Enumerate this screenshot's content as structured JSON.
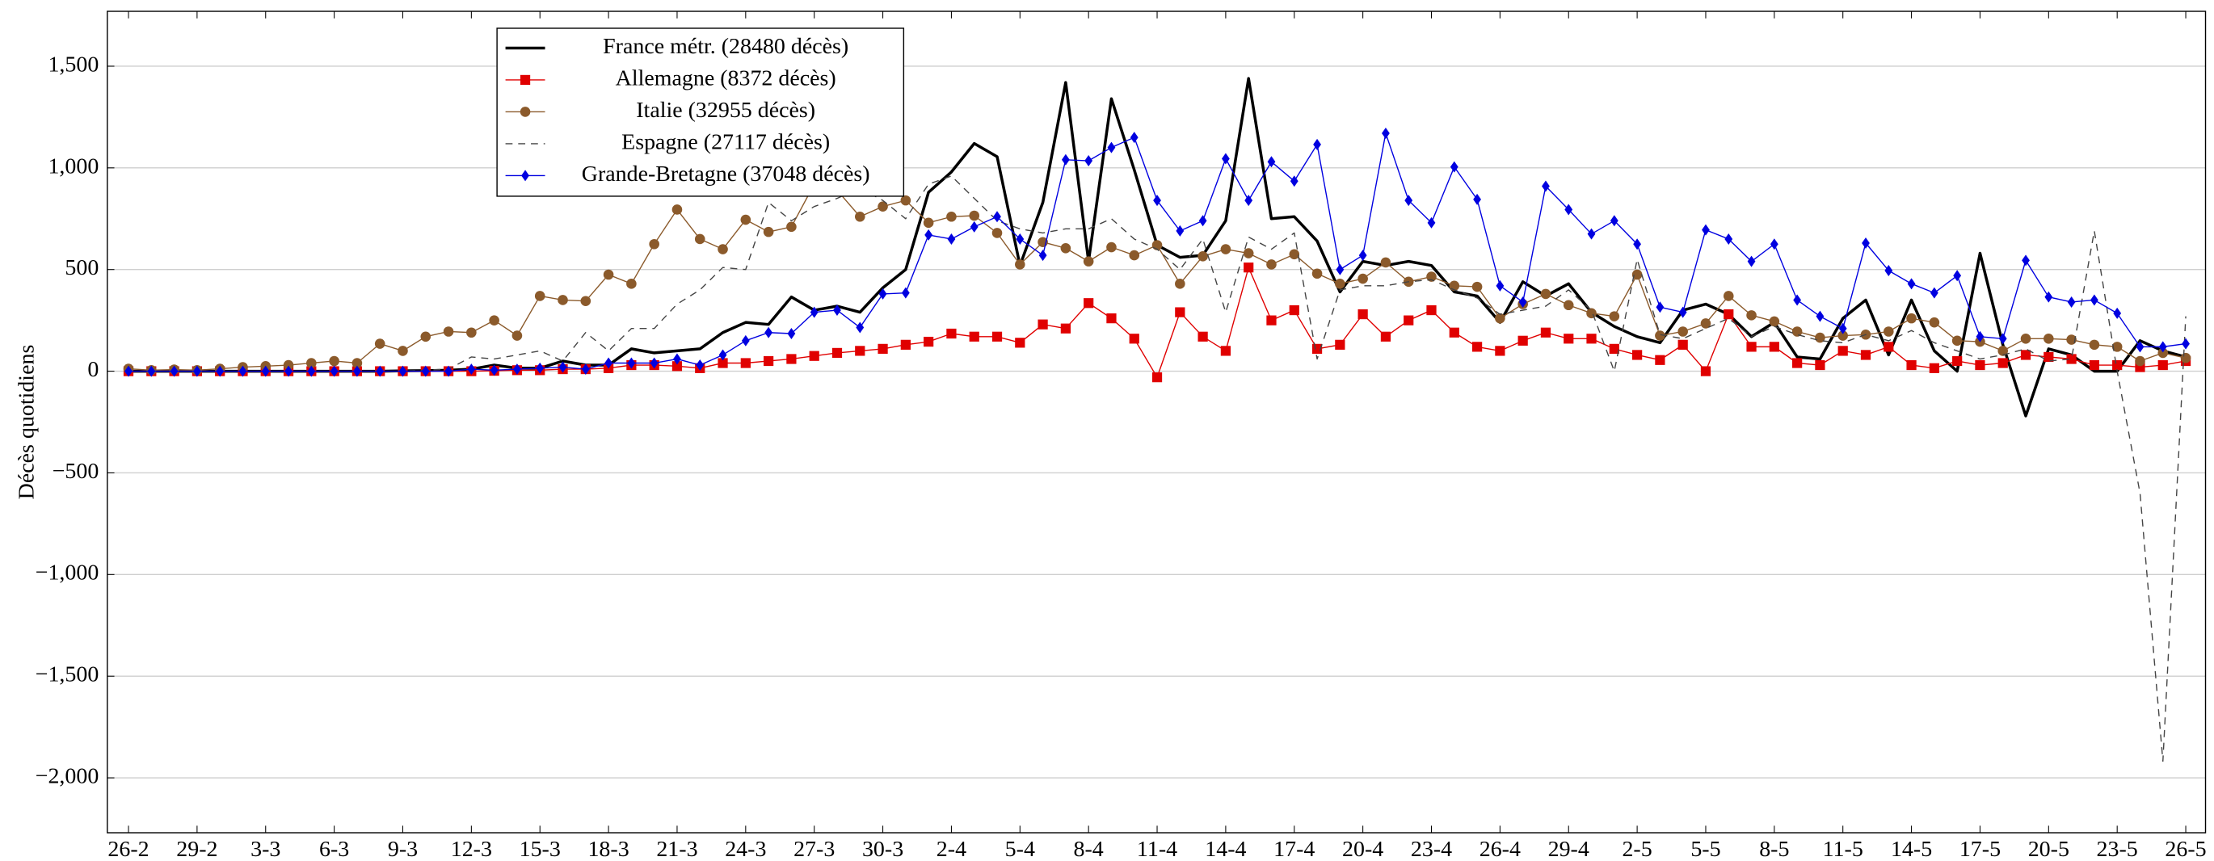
{
  "chart_data": {
    "type": "line",
    "y_label": "Décès quotidiens",
    "categories": [
      "26-2",
      null,
      null,
      "29-2",
      null,
      null,
      "3-3",
      null,
      null,
      "6-3",
      null,
      null,
      "9-3",
      null,
      null,
      "12-3",
      null,
      null,
      "15-3",
      null,
      null,
      "18-3",
      null,
      null,
      "21-3",
      null,
      null,
      "24-3",
      null,
      null,
      "27-3",
      null,
      null,
      "30-3",
      null,
      null,
      "2-4",
      null,
      null,
      "5-4",
      null,
      null,
      "8-4",
      null,
      null,
      "11-4",
      null,
      null,
      "14-4",
      null,
      null,
      "17-4",
      null,
      null,
      "20-4",
      null,
      null,
      "23-4",
      null,
      null,
      "26-4",
      null,
      null,
      "29-4",
      null,
      null,
      "2-5",
      null,
      null,
      "5-5",
      null,
      null,
      "8-5",
      null,
      null,
      "11-5",
      null,
      null,
      "14-5",
      null,
      null,
      "17-5",
      null,
      null,
      "20-5",
      null,
      null,
      "23-5",
      null,
      null,
      "26-5"
    ],
    "series": [
      {
        "name": "France métr. (28480 décès)",
        "color": "#000000",
        "width": 2,
        "linestyle": "solid",
        "marker": "none",
        "values": [
          0,
          0,
          0,
          0,
          0,
          0,
          0,
          0,
          0,
          0,
          0,
          0,
          2,
          3,
          5,
          10,
          30,
          15,
          15,
          50,
          30,
          30,
          110,
          90,
          100,
          110,
          190,
          240,
          230,
          365,
          300,
          320,
          290,
          410,
          500,
          880,
          980,
          1120,
          1055,
          520,
          830,
          1420,
          540,
          1340,
          990,
          620,
          560,
          570,
          740,
          1440,
          750,
          760,
          640,
          390,
          540,
          520,
          540,
          520,
          390,
          370,
          240,
          440,
          370,
          430,
          290,
          220,
          170,
          140,
          300,
          330,
          280,
          170,
          240,
          70,
          60,
          260,
          350,
          80,
          350,
          100,
          0,
          580,
          130,
          -220,
          110,
          80,
          0,
          0,
          150,
          100,
          70
        ]
      },
      {
        "name": "Allemagne (8372 décès)",
        "color": "#e00000",
        "width": 0.8,
        "linestyle": "solid",
        "marker": "square",
        "values": [
          0,
          0,
          0,
          0,
          0,
          0,
          0,
          0,
          0,
          0,
          0,
          0,
          0,
          0,
          0,
          0,
          2,
          5,
          5,
          10,
          10,
          15,
          30,
          30,
          25,
          15,
          40,
          40,
          50,
          60,
          75,
          90,
          100,
          110,
          130,
          145,
          185,
          170,
          170,
          140,
          230,
          210,
          335,
          260,
          160,
          -30,
          290,
          170,
          100,
          510,
          250,
          300,
          110,
          130,
          280,
          170,
          250,
          300,
          190,
          120,
          100,
          150,
          190,
          160,
          160,
          110,
          80,
          55,
          130,
          0,
          280,
          120,
          120,
          40,
          30,
          100,
          80,
          120,
          30,
          15,
          50,
          30,
          40,
          80,
          70,
          60,
          30,
          30,
          20,
          30,
          50
        ]
      },
      {
        "name": "Italie (32955 décès)",
        "color": "#8b5a2b",
        "width": 0.8,
        "linestyle": "solid",
        "marker": "circle",
        "values": [
          12,
          5,
          8,
          5,
          12,
          20,
          25,
          30,
          40,
          50,
          40,
          135,
          100,
          170,
          195,
          190,
          250,
          175,
          370,
          350,
          345,
          475,
          430,
          625,
          795,
          650,
          600,
          745,
          685,
          710,
          920,
          890,
          760,
          810,
          840,
          730,
          760,
          765,
          680,
          525,
          635,
          605,
          540,
          610,
          570,
          620,
          430,
          565,
          600,
          580,
          525,
          575,
          480,
          430,
          455,
          535,
          440,
          465,
          420,
          415,
          260,
          330,
          380,
          325,
          285,
          270,
          475,
          175,
          195,
          235,
          370,
          275,
          245,
          195,
          165,
          175,
          180,
          195,
          260,
          240,
          150,
          145,
          100,
          160,
          160,
          155,
          130,
          120,
          50,
          90,
          65
        ]
      },
      {
        "name": "Espagne (27117 décès)",
        "color": "#444444",
        "width": 0.8,
        "linestyle": "dashed",
        "marker": "none",
        "values": [
          0,
          0,
          0,
          0,
          0,
          0,
          0,
          0,
          0,
          0,
          0,
          0,
          0,
          5,
          10,
          70,
          60,
          80,
          100,
          50,
          190,
          100,
          210,
          210,
          330,
          400,
          510,
          500,
          830,
          740,
          810,
          850,
          900,
          840,
          750,
          920,
          960,
          850,
          740,
          700,
          680,
          700,
          700,
          750,
          650,
          600,
          500,
          650,
          290,
          660,
          600,
          680,
          60,
          400,
          420,
          420,
          440,
          450,
          400,
          360,
          280,
          300,
          320,
          400,
          300,
          0,
          550,
          180,
          160,
          210,
          260,
          170,
          220,
          180,
          150,
          140,
          180,
          150,
          200,
          140,
          100,
          60,
          80,
          110,
          50,
          60,
          690,
          0,
          -600,
          -1918,
          270
        ]
      },
      {
        "name": "Grande-Bretagne (37048 décès)",
        "color": "#0000e0",
        "width": 0.8,
        "linestyle": "solid",
        "marker": "diamond",
        "values": [
          0,
          0,
          0,
          0,
          0,
          0,
          0,
          0,
          0,
          0,
          0,
          0,
          0,
          0,
          0,
          10,
          5,
          10,
          15,
          20,
          10,
          40,
          40,
          40,
          60,
          30,
          80,
          150,
          190,
          185,
          290,
          300,
          215,
          380,
          385,
          670,
          650,
          710,
          760,
          650,
          570,
          1040,
          1035,
          1100,
          1150,
          840,
          690,
          740,
          1045,
          840,
          1030,
          935,
          1115,
          500,
          570,
          1170,
          840,
          730,
          1005,
          845,
          420,
          340,
          910,
          795,
          675,
          740,
          625,
          315,
          290,
          695,
          650,
          540,
          625,
          350,
          270,
          210,
          630,
          495,
          430,
          385,
          470,
          170,
          160,
          545,
          365,
          340,
          350,
          285,
          120,
          120,
          135
        ]
      }
    ],
    "ylim": [
      -2270,
      1770
    ],
    "yticks": [
      {
        "value": -2000,
        "label": "−2,000"
      },
      {
        "value": -1500,
        "label": "−1,500"
      },
      {
        "value": -1000,
        "label": "−1,000"
      },
      {
        "value": -500,
        "label": "−500"
      },
      0,
      500,
      {
        "value": 1000,
        "label": "1,000"
      },
      {
        "value": 1500,
        "label": "1,500"
      }
    ],
    "grid": true,
    "legend": "upper left"
  }
}
